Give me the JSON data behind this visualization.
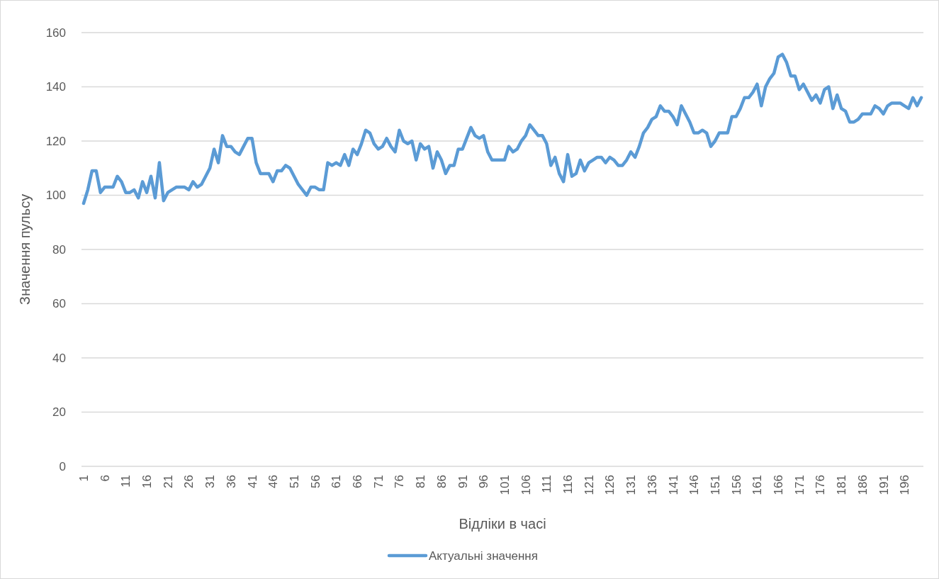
{
  "chart_data": {
    "type": "line",
    "xlabel": "Відліки в часі",
    "ylabel": "Значення пульсу",
    "categories": [
      "1",
      null,
      null,
      null,
      null,
      "6",
      null,
      null,
      null,
      null,
      "11",
      null,
      null,
      null,
      null,
      "16",
      null,
      null,
      null,
      null,
      "21",
      null,
      null,
      null,
      null,
      "26",
      null,
      null,
      null,
      null,
      "31",
      null,
      null,
      null,
      null,
      "36",
      null,
      null,
      null,
      null,
      "41",
      null,
      null,
      null,
      null,
      "46",
      null,
      null,
      null,
      null,
      "51",
      null,
      null,
      null,
      null,
      "56",
      null,
      null,
      null,
      null,
      "61",
      null,
      null,
      null,
      null,
      "66",
      null,
      null,
      null,
      null,
      "71",
      null,
      null,
      null,
      null,
      "76",
      null,
      null,
      null,
      null,
      "81",
      null,
      null,
      null,
      null,
      "86",
      null,
      null,
      null,
      null,
      "91",
      null,
      null,
      null,
      null,
      "96",
      null,
      null,
      null,
      null,
      "101",
      null,
      null,
      null,
      null,
      "106",
      null,
      null,
      null,
      null,
      "111",
      null,
      null,
      null,
      null,
      "116",
      null,
      null,
      null,
      null,
      "121",
      null,
      null,
      null,
      null,
      "126",
      null,
      null,
      null,
      null,
      "131",
      null,
      null,
      null,
      null,
      "136",
      null,
      null,
      null,
      null,
      "141",
      null,
      null,
      null,
      null,
      "146",
      null,
      null,
      null,
      null,
      "151",
      null,
      null,
      null,
      null,
      "156",
      null,
      null,
      null,
      null,
      "161",
      null,
      null,
      null,
      null,
      "166",
      null,
      null,
      null,
      null,
      "171",
      null,
      null,
      null,
      null,
      "176",
      null,
      null,
      null,
      null,
      "181",
      null,
      null,
      null,
      null,
      "186",
      null,
      null,
      null,
      null,
      "191",
      null,
      null,
      null,
      null,
      "196",
      null,
      null,
      null,
      null
    ],
    "series": [
      {
        "name": "Актуальні значення",
        "color": "#5b9bd5",
        "values": [
          97,
          102,
          109,
          109,
          101,
          103,
          103,
          103,
          107,
          105,
          101,
          101,
          102,
          99,
          105,
          101,
          107,
          99,
          112,
          98,
          101,
          102,
          103,
          103,
          103,
          102,
          105,
          103,
          104,
          107,
          110,
          117,
          112,
          122,
          118,
          118,
          116,
          115,
          118,
          121,
          121,
          112,
          108,
          108,
          108,
          105,
          109,
          109,
          111,
          110,
          107,
          104,
          102,
          100,
          103,
          103,
          102,
          102,
          112,
          111,
          112,
          111,
          115,
          111,
          117,
          115,
          119,
          124,
          123,
          119,
          117,
          118,
          121,
          118,
          116,
          124,
          120,
          119,
          120,
          113,
          119,
          117,
          118,
          110,
          116,
          113,
          108,
          111,
          111,
          117,
          117,
          121,
          125,
          122,
          121,
          122,
          116,
          113,
          113,
          113,
          113,
          118,
          116,
          117,
          120,
          122,
          126,
          124,
          122,
          122,
          119,
          111,
          114,
          108,
          105,
          115,
          107,
          108,
          113,
          109,
          112,
          113,
          114,
          114,
          112,
          114,
          113,
          111,
          111,
          113,
          116,
          114,
          118,
          123,
          125,
          128,
          129,
          133,
          131,
          131,
          129,
          126,
          133,
          130,
          127,
          123,
          123,
          124,
          123,
          118,
          120,
          123,
          123,
          123,
          129,
          129,
          132,
          136,
          136,
          138,
          141,
          133,
          140,
          143,
          145,
          151,
          152,
          149,
          144,
          144,
          139,
          141,
          138,
          135,
          137,
          134,
          139,
          140,
          132,
          137,
          132,
          131,
          127,
          127,
          128,
          130,
          130,
          130,
          133,
          132,
          130,
          133,
          134,
          134,
          134,
          133,
          132,
          136,
          133,
          136
        ]
      }
    ],
    "ylim": [
      0,
      160
    ],
    "yticks": [
      0,
      20,
      40,
      60,
      80,
      100,
      120,
      140,
      160
    ],
    "grid": "y",
    "legend": "bottom",
    "marker": "none",
    "line_style": "solid"
  }
}
